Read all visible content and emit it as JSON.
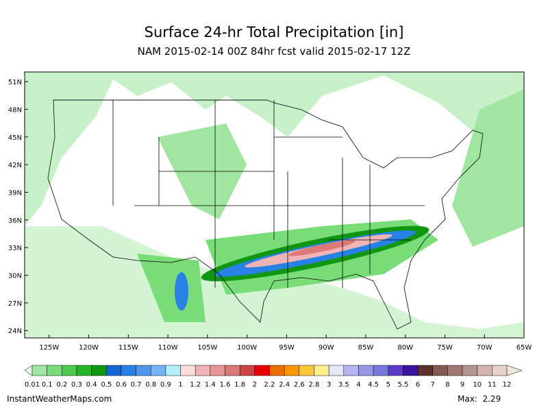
{
  "header": {
    "title": "Surface 24-hr Total Precipitation [in]",
    "subtitle": "NAM 2015-02-14 00Z 84hr fcst valid 2015-02-17 12Z"
  },
  "map": {
    "lat_ticks": [
      {
        "value": 51,
        "label": "51N"
      },
      {
        "value": 48,
        "label": "48N"
      },
      {
        "value": 45,
        "label": "45N"
      },
      {
        "value": 42,
        "label": "42N"
      },
      {
        "value": 39,
        "label": "39N"
      },
      {
        "value": 36,
        "label": "36N"
      },
      {
        "value": 33,
        "label": "33N"
      },
      {
        "value": 30,
        "label": "30N"
      },
      {
        "value": 27,
        "label": "27N"
      },
      {
        "value": 24,
        "label": "24N"
      }
    ],
    "lon_ticks": [
      {
        "value": -125,
        "label": "125W"
      },
      {
        "value": -120,
        "label": "120W"
      },
      {
        "value": -115,
        "label": "115W"
      },
      {
        "value": -110,
        "label": "110W"
      },
      {
        "value": -105,
        "label": "105W"
      },
      {
        "value": -100,
        "label": "100W"
      },
      {
        "value": -95,
        "label": "95W"
      },
      {
        "value": -90,
        "label": "90W"
      },
      {
        "value": -85,
        "label": "85W"
      },
      {
        "value": -80,
        "label": "80W"
      },
      {
        "value": -75,
        "label": "75W"
      },
      {
        "value": -70,
        "label": "70W"
      },
      {
        "value": -65,
        "label": "65W"
      }
    ],
    "lat_range": [
      23.2,
      52.05
    ],
    "lon_range": [
      -128.1,
      -65
    ]
  },
  "colorbar": {
    "levels": [
      0.01,
      0.1,
      0.2,
      0.3,
      0.4,
      0.5,
      0.6,
      0.7,
      0.8,
      0.9,
      1,
      1.2,
      1.4,
      1.6,
      1.8,
      2,
      2.2,
      2.4,
      2.6,
      2.8,
      3,
      3.5,
      4,
      4.5,
      5,
      5.5,
      6,
      7,
      8,
      9,
      10,
      11,
      12
    ],
    "colors": [
      "#e6fae6",
      "#a0e6a0",
      "#78dc78",
      "#50c850",
      "#28b428",
      "#109610",
      "#1464d2",
      "#2882e6",
      "#5096f0",
      "#78b4fa",
      "#b4f0fa",
      "#fadcdc",
      "#f0b4b4",
      "#e69696",
      "#dc7878",
      "#c84646",
      "#e60000",
      "#f06e00",
      "#fa9600",
      "#ffc83c",
      "#fff08c",
      "#e6e6fa",
      "#b4b4f0",
      "#9696e6",
      "#7878dc",
      "#5a3cc8",
      "#3c14a0",
      "#5a3228",
      "#825a50",
      "#a07870",
      "#b49690",
      "#d2b4aa",
      "#e6d2c8",
      "#f0e6dc"
    ]
  },
  "footer": {
    "site": "InstantWeatherMaps.com",
    "max": "Max:  2.29"
  }
}
